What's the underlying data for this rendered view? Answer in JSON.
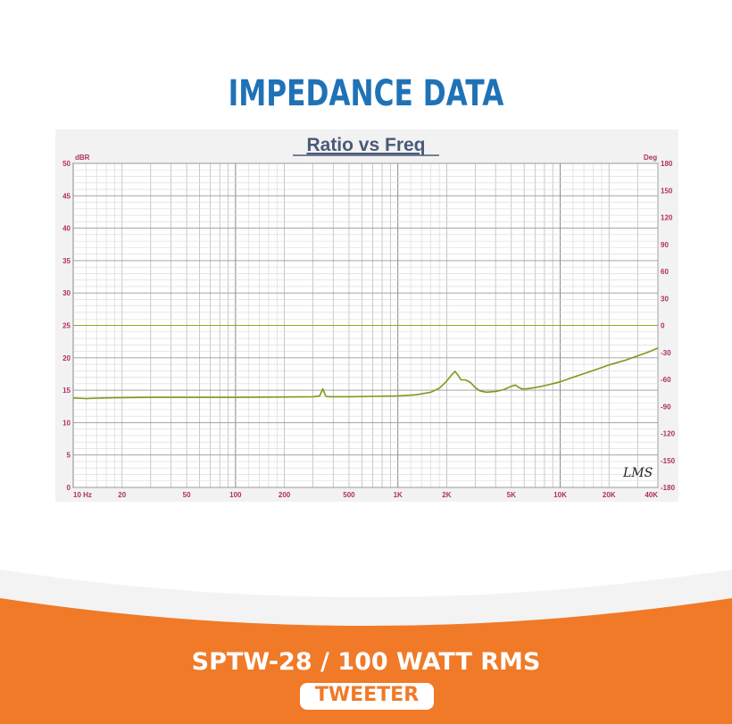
{
  "page": {
    "title": "IMPEDANCE DATA",
    "model": "SPTW-28 / 100 WATT RMS",
    "type": "TWEETER"
  },
  "colors": {
    "title": "#1f72b6",
    "curve": "#7a9a1e",
    "zero_line": "#9aa52a",
    "axis_labels": "#b03060",
    "footer_orange": "#f07a28"
  },
  "chart_data": {
    "type": "line",
    "title": "Ratio vs Freq",
    "ylabel": "dBR",
    "y2label": "Deg",
    "watermark": "LMS",
    "x_scale": "log",
    "xlim": [
      10,
      40000
    ],
    "ylim": [
      0,
      50
    ],
    "y2lim": [
      -180,
      180
    ],
    "grid": true,
    "x_ticks": [
      {
        "value": 10,
        "label": "10  Hz"
      },
      {
        "value": 20,
        "label": "20"
      },
      {
        "value": 50,
        "label": "50"
      },
      {
        "value": 100,
        "label": "100"
      },
      {
        "value": 200,
        "label": "200"
      },
      {
        "value": 500,
        "label": "500"
      },
      {
        "value": 1000,
        "label": "1K"
      },
      {
        "value": 2000,
        "label": "2K"
      },
      {
        "value": 5000,
        "label": "5K"
      },
      {
        "value": 10000,
        "label": "10K"
      },
      {
        "value": 20000,
        "label": "20K"
      },
      {
        "value": 40000,
        "label": "40K"
      }
    ],
    "y_ticks": [
      0,
      5,
      10,
      15,
      20,
      25,
      30,
      35,
      40,
      45,
      50
    ],
    "y2_ticks": [
      180,
      150,
      120,
      90,
      60,
      30,
      0,
      -30,
      -60,
      -90,
      -120,
      -150,
      -180
    ],
    "series": [
      {
        "x": [
          10,
          12,
          15,
          20,
          30,
          50,
          100,
          200,
          300,
          330,
          345,
          360,
          380,
          420,
          500,
          700,
          1000,
          1300,
          1600,
          1800,
          2000,
          2150,
          2250,
          2350,
          2450,
          2600,
          2800,
          3000,
          3200,
          3500,
          4000,
          4500,
          5000,
          5300,
          5500,
          5800,
          6200,
          7000,
          8000,
          9000,
          10000,
          12000,
          15000,
          18000,
          20000,
          25000,
          30000,
          35000,
          40000
        ],
        "y": [
          13.8,
          13.7,
          13.8,
          13.85,
          13.9,
          13.9,
          13.9,
          13.95,
          14.0,
          14.1,
          15.2,
          14.05,
          14.0,
          14.0,
          14.0,
          14.05,
          14.1,
          14.3,
          14.7,
          15.3,
          16.4,
          17.4,
          17.9,
          17.3,
          16.6,
          16.6,
          16.2,
          15.4,
          14.9,
          14.7,
          14.8,
          15.1,
          15.6,
          15.8,
          15.5,
          15.2,
          15.2,
          15.4,
          15.7,
          16.0,
          16.3,
          17.0,
          17.8,
          18.5,
          18.9,
          19.6,
          20.3,
          20.9,
          21.5
        ]
      },
      {
        "x": [
          10,
          40000
        ],
        "y2": [
          0,
          0
        ]
      }
    ]
  }
}
